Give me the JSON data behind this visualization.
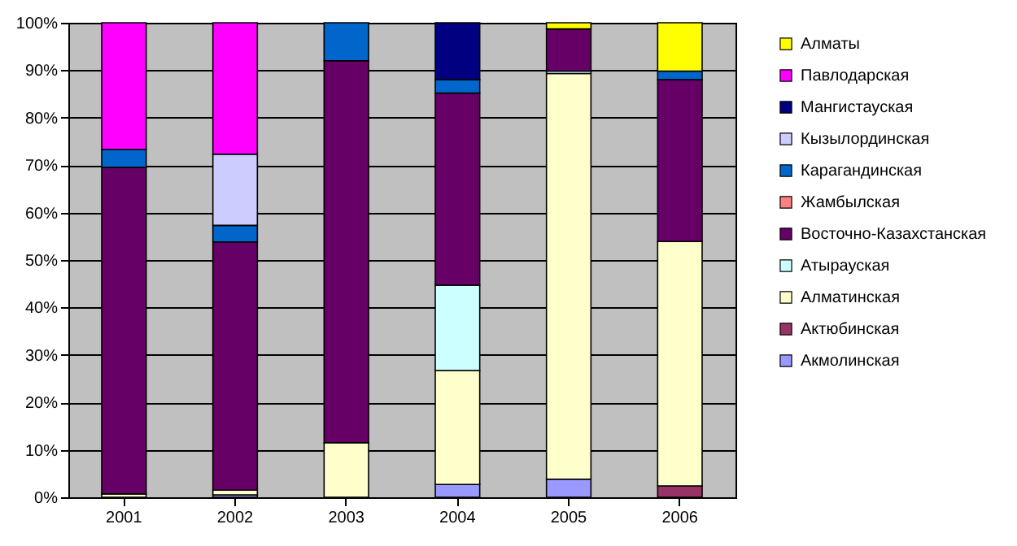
{
  "chart_data": {
    "type": "bar",
    "stacked": true,
    "categories": [
      "2001",
      "2002",
      "2003",
      "2004",
      "2005",
      "2006"
    ],
    "series": [
      {
        "name": "Акмолинская",
        "color": "#9999ff",
        "values": [
          0,
          0.5,
          0,
          2.7,
          3.8,
          0
        ]
      },
      {
        "name": "Актюбинская",
        "color": "#993366",
        "values": [
          0,
          0,
          0,
          0,
          0,
          2.4
        ]
      },
      {
        "name": "Алматинская",
        "color": "#ffffcc",
        "values": [
          0.7,
          1,
          11.5,
          24,
          85.5,
          51.5
        ]
      },
      {
        "name": "Атырауская",
        "color": "#ccffff",
        "values": [
          0,
          0,
          0,
          18,
          0.5,
          0
        ]
      },
      {
        "name": "Восточно-Казахстанская",
        "color": "#660066",
        "values": [
          68.8,
          52.3,
          80.5,
          40.5,
          8.9,
          34.1
        ]
      },
      {
        "name": "Жамбылская",
        "color": "#ff8080",
        "values": [
          0,
          0,
          0,
          0,
          0,
          0
        ]
      },
      {
        "name": "Карагандинская",
        "color": "#0066cc",
        "values": [
          3.8,
          3.5,
          8,
          2.8,
          0,
          1.8
        ]
      },
      {
        "name": "Кызылординская",
        "color": "#ccccff",
        "values": [
          0,
          15,
          0,
          0,
          0,
          0
        ]
      },
      {
        "name": "Мангистауская",
        "color": "#000080",
        "values": [
          0,
          0,
          0,
          12,
          0,
          0
        ]
      },
      {
        "name": "Павлодарская",
        "color": "#ff00ff",
        "values": [
          26.7,
          27.7,
          0,
          0,
          0,
          0
        ]
      },
      {
        "name": "Алматы",
        "color": "#ffff00",
        "values": [
          0,
          0,
          0,
          0,
          1.3,
          10.2
        ]
      }
    ],
    "ylim": [
      0,
      100
    ],
    "yticks": [
      {
        "value": 0,
        "label": "0%"
      },
      {
        "value": 10,
        "label": "10%"
      },
      {
        "value": 20,
        "label": "20%"
      },
      {
        "value": 30,
        "label": "30%"
      },
      {
        "value": 40,
        "label": "40%"
      },
      {
        "value": 50,
        "label": "50%"
      },
      {
        "value": 60,
        "label": "60%"
      },
      {
        "value": 70,
        "label": "70%"
      },
      {
        "value": 80,
        "label": "80%"
      },
      {
        "value": 90,
        "label": "90%"
      },
      {
        "value": 100,
        "label": "100%"
      }
    ],
    "grid": "y",
    "legend": "right"
  }
}
